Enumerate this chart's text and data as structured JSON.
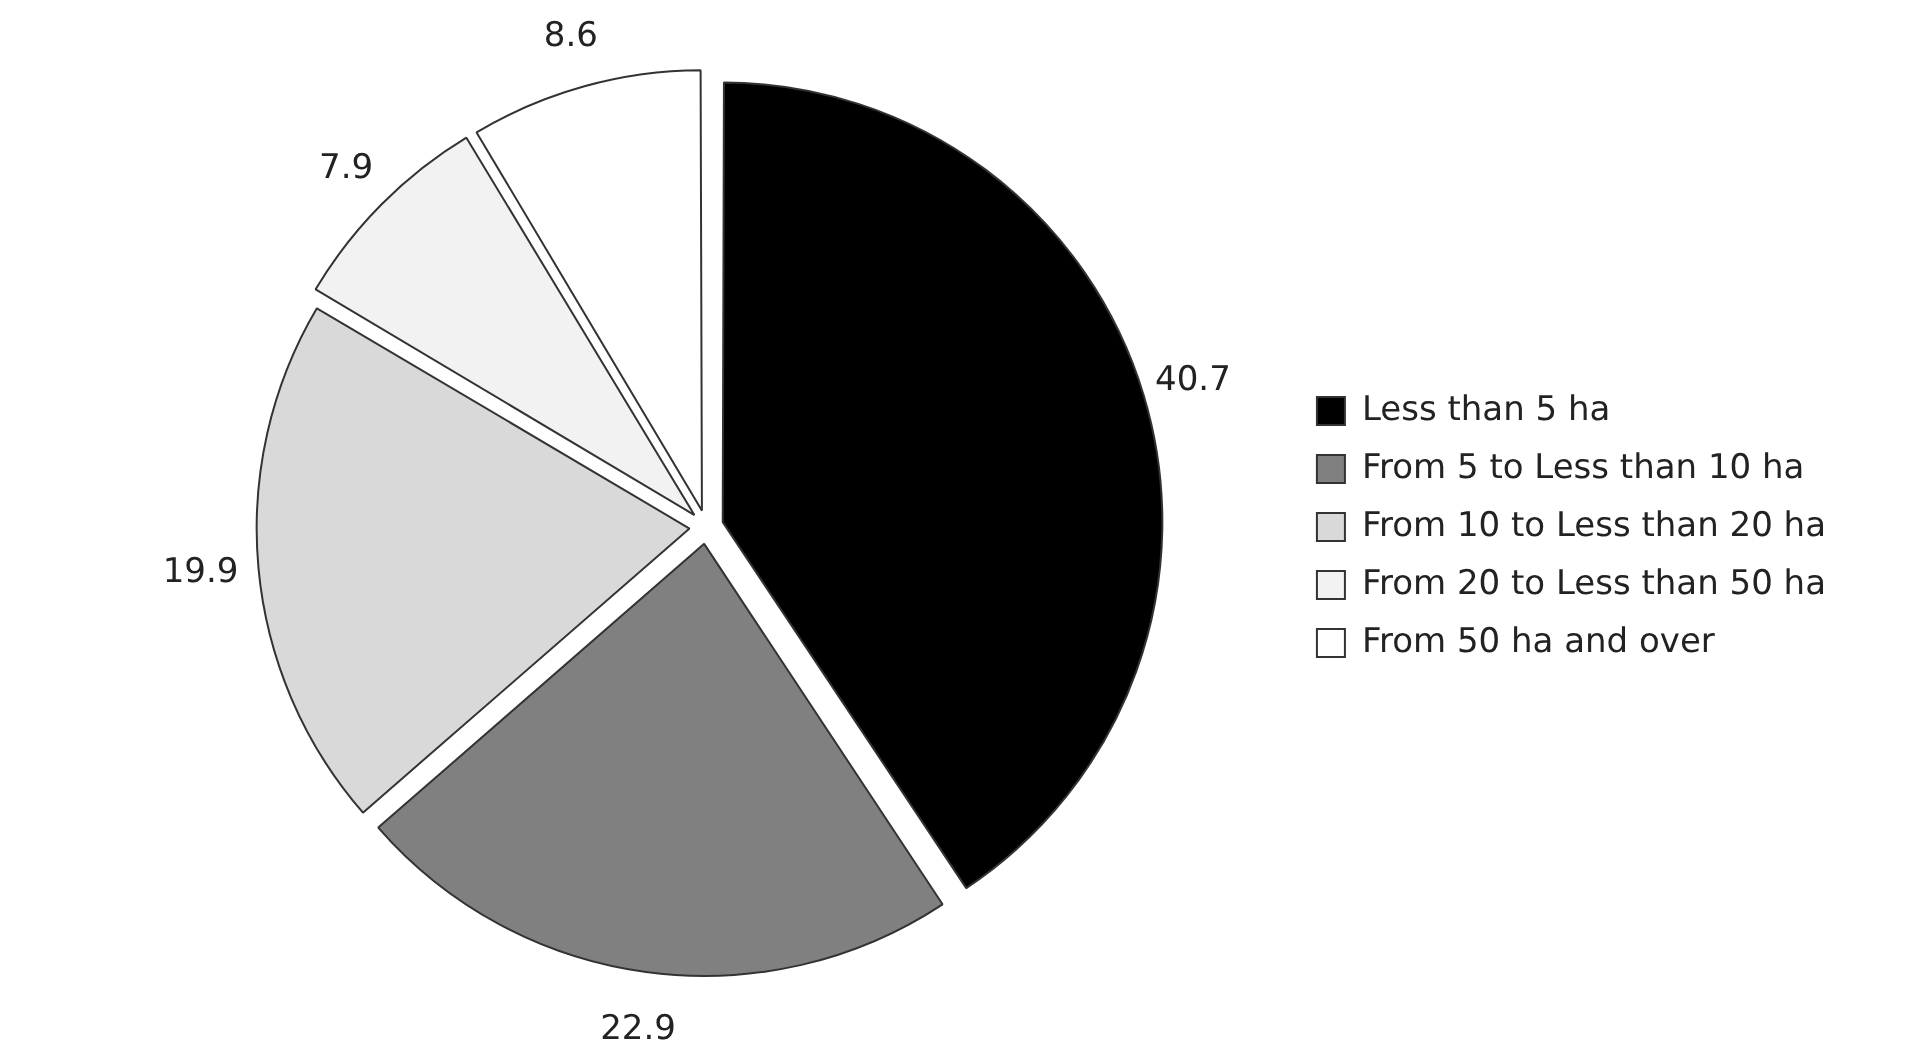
{
  "chart_data": {
    "type": "pie",
    "categories": [
      "Less than 5 ha",
      "From 5 to Less than 10 ha",
      "From 10 to Less than 20 ha",
      "From 20 to Less than 50 ha",
      "From 50 ha and over"
    ],
    "values": [
      40.7,
      22.9,
      19.9,
      7.9,
      8.6
    ],
    "colors": [
      "#000000",
      "#808080",
      "#d9d9d9",
      "#f2f2f2",
      "#ffffff"
    ],
    "legend": "right",
    "data_labels": true
  }
}
